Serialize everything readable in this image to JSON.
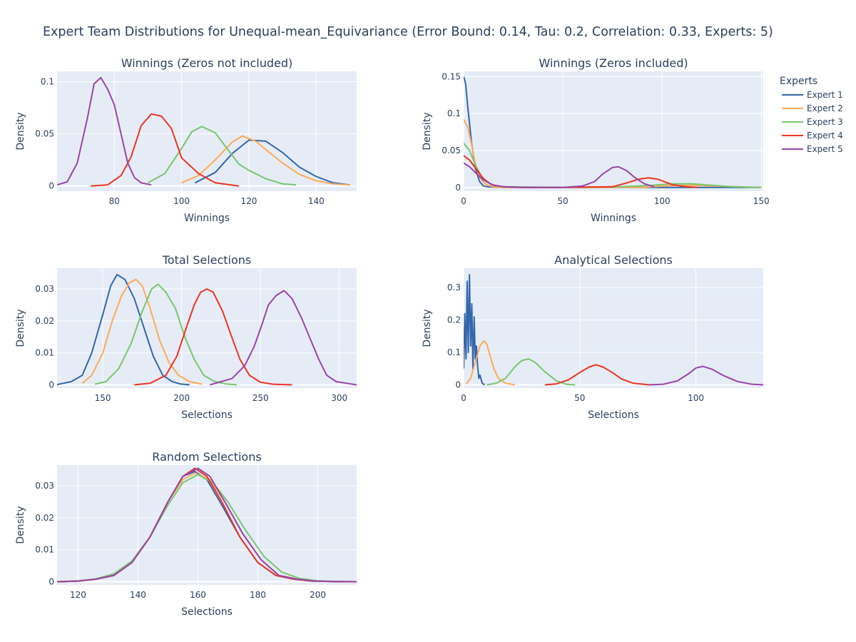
{
  "title": "Expert Team Distributions for Unequal-mean_Equivariance (Error Bound: 0.14, Tau: 0.2, Correlation: 0.33, Experts: 5)",
  "legend": {
    "title": "Experts",
    "placement": "top-right",
    "entries": [
      {
        "name": "Expert 1",
        "color": "#3366aa"
      },
      {
        "name": "Expert 2",
        "color": "#ffaa55"
      },
      {
        "name": "Expert 3",
        "color": "#77c66e"
      },
      {
        "name": "Expert 4",
        "color": "#ee3322"
      },
      {
        "name": "Expert 5",
        "color": "#9944aa"
      }
    ]
  },
  "colors": {
    "plot_bg": "#e5ecf6",
    "grid": "#ffffff",
    "text": "#2a3f5f"
  },
  "chart_data": [
    {
      "type": "line",
      "title": "Winnings (Zeros not included)",
      "xlabel": "Winnings",
      "ylabel": "Density",
      "xlim": [
        63,
        152
      ],
      "ylim": [
        -0.005,
        0.11
      ],
      "xticks": [
        80,
        100,
        120,
        140
      ],
      "yticks": [
        0,
        0.05,
        0.1
      ],
      "ytick_labels": [
        "0",
        "0.05",
        "0.1"
      ],
      "grid": true,
      "series": [
        {
          "name": "Expert 1",
          "x": [
            104,
            110,
            115,
            120,
            125,
            130,
            135,
            140,
            145,
            150
          ],
          "y": [
            0.003,
            0.013,
            0.031,
            0.044,
            0.043,
            0.032,
            0.018,
            0.009,
            0.003,
            0.001
          ]
        },
        {
          "name": "Expert 2",
          "x": [
            100,
            105,
            110,
            115,
            118,
            122,
            125,
            130,
            135,
            140,
            145,
            150
          ],
          "y": [
            0.003,
            0.01,
            0.025,
            0.042,
            0.048,
            0.043,
            0.035,
            0.022,
            0.011,
            0.005,
            0.002,
            0.001
          ]
        },
        {
          "name": "Expert 3",
          "x": [
            90,
            95,
            100,
            103,
            106,
            110,
            113,
            117,
            120,
            125,
            130,
            134
          ],
          "y": [
            0.003,
            0.012,
            0.036,
            0.052,
            0.057,
            0.051,
            0.038,
            0.021,
            0.015,
            0.007,
            0.002,
            0.001
          ]
        },
        {
          "name": "Expert 4",
          "x": [
            73,
            78,
            82,
            85,
            88,
            91,
            94,
            97,
            100,
            105,
            110,
            117
          ],
          "y": [
            0.0,
            0.001,
            0.01,
            0.028,
            0.058,
            0.069,
            0.067,
            0.055,
            0.027,
            0.012,
            0.003,
            0.0
          ]
        },
        {
          "name": "Expert 5",
          "x": [
            63,
            66,
            69,
            72,
            74,
            76,
            78,
            80,
            82,
            84,
            86,
            88,
            91
          ],
          "y": [
            0.001,
            0.004,
            0.022,
            0.065,
            0.098,
            0.104,
            0.093,
            0.078,
            0.05,
            0.022,
            0.008,
            0.003,
            0.001
          ]
        }
      ]
    },
    {
      "type": "line",
      "title": "Winnings (Zeros included)",
      "xlabel": "Winnings",
      "ylabel": "Density",
      "xlim": [
        0,
        151
      ],
      "ylim": [
        -0.005,
        0.157
      ],
      "xticks": [
        0,
        50,
        100,
        150
      ],
      "yticks": [
        0,
        0.05,
        0.1,
        0.15
      ],
      "ytick_labels": [
        "0",
        "0.05",
        "0.1",
        "0.15"
      ],
      "grid": true,
      "series": [
        {
          "name": "Expert 1",
          "x": [
            0,
            1,
            2,
            4,
            6,
            8,
            10,
            12,
            15,
            20,
            50,
            100,
            150
          ],
          "y": [
            0.15,
            0.14,
            0.11,
            0.06,
            0.025,
            0.008,
            0.002,
            0.001,
            0.0005,
            0,
            0,
            0,
            0
          ]
        },
        {
          "name": "Expert 2",
          "x": [
            0,
            2,
            4,
            6,
            8,
            10,
            12,
            15,
            20,
            50,
            90,
            100,
            110,
            117,
            125,
            150
          ],
          "y": [
            0.092,
            0.082,
            0.058,
            0.03,
            0.014,
            0.007,
            0.003,
            0.001,
            0,
            0,
            0,
            0.002,
            0.003,
            0.003,
            0.002,
            0
          ]
        },
        {
          "name": "Expert 3",
          "x": [
            0,
            3,
            6,
            9,
            12,
            15,
            20,
            50,
            80,
            95,
            105,
            115,
            125,
            135,
            150
          ],
          "y": [
            0.06,
            0.05,
            0.03,
            0.015,
            0.007,
            0.003,
            0.001,
            0,
            0.001,
            0.003,
            0.005,
            0.005,
            0.003,
            0.001,
            0
          ]
        },
        {
          "name": "Expert 4",
          "x": [
            0,
            3,
            6,
            10,
            14,
            20,
            30,
            50,
            75,
            82,
            88,
            93,
            98,
            105,
            112,
            118
          ],
          "y": [
            0.043,
            0.037,
            0.026,
            0.012,
            0.004,
            0.001,
            0,
            0,
            0.001,
            0.006,
            0.011,
            0.013,
            0.011,
            0.004,
            0.001,
            0
          ]
        },
        {
          "name": "Expert 5",
          "x": [
            0,
            3,
            6,
            10,
            15,
            20,
            30,
            50,
            60,
            66,
            70,
            75,
            78,
            82,
            86,
            91,
            96
          ],
          "y": [
            0.033,
            0.028,
            0.02,
            0.01,
            0.003,
            0.001,
            0,
            0,
            0.002,
            0.008,
            0.018,
            0.027,
            0.028,
            0.023,
            0.014,
            0.005,
            0.001
          ]
        }
      ]
    },
    {
      "type": "line",
      "title": "Total Selections",
      "xlabel": "Selections",
      "ylabel": "Density",
      "xlim": [
        121,
        311
      ],
      "ylim": [
        -0.001,
        0.0365
      ],
      "xticks": [
        150,
        200,
        250,
        300
      ],
      "yticks": [
        0,
        0.01,
        0.02,
        0.03
      ],
      "ytick_labels": [
        "0",
        "0.01",
        "0.02",
        "0.03"
      ],
      "grid": true,
      "series": [
        {
          "name": "Expert 1",
          "x": [
            121,
            130,
            137,
            143,
            150,
            155,
            159,
            164,
            170,
            176,
            182,
            188,
            194,
            199,
            205
          ],
          "y": [
            0.0001,
            0.001,
            0.003,
            0.01,
            0.022,
            0.031,
            0.0345,
            0.033,
            0.027,
            0.018,
            0.009,
            0.003,
            0.001,
            0.0003,
            0
          ]
        },
        {
          "name": "Expert 2",
          "x": [
            137,
            143,
            150,
            156,
            162,
            167,
            171,
            175,
            180,
            186,
            192,
            198,
            205,
            213
          ],
          "y": [
            0.0005,
            0.003,
            0.01,
            0.02,
            0.028,
            0.032,
            0.033,
            0.031,
            0.024,
            0.014,
            0.007,
            0.003,
            0.001,
            0.0002
          ]
        },
        {
          "name": "Expert 3",
          "x": [
            145,
            152,
            160,
            168,
            175,
            181,
            185,
            190,
            196,
            202,
            208,
            214,
            221,
            228,
            235
          ],
          "y": [
            0.0002,
            0.001,
            0.005,
            0.013,
            0.023,
            0.03,
            0.0315,
            0.029,
            0.024,
            0.015,
            0.008,
            0.003,
            0.001,
            0.0003,
            0
          ]
        },
        {
          "name": "Expert 4",
          "x": [
            170,
            180,
            190,
            197,
            203,
            208,
            212,
            216,
            220,
            226,
            231,
            237,
            243,
            250,
            258,
            270
          ],
          "y": [
            0,
            0.0005,
            0.003,
            0.009,
            0.018,
            0.025,
            0.029,
            0.03,
            0.029,
            0.023,
            0.016,
            0.008,
            0.003,
            0.0008,
            0.0002,
            0
          ]
        },
        {
          "name": "Expert 5",
          "x": [
            218,
            225,
            232,
            240,
            246,
            251,
            255,
            260,
            265,
            270,
            276,
            281,
            287,
            292,
            298,
            311
          ],
          "y": [
            0,
            0.001,
            0.002,
            0.006,
            0.012,
            0.019,
            0.025,
            0.028,
            0.0295,
            0.027,
            0.021,
            0.015,
            0.008,
            0.003,
            0.001,
            0
          ]
        }
      ]
    },
    {
      "type": "line",
      "title": "Analytical Selections",
      "xlabel": "Selections",
      "ylabel": "Density",
      "xlim": [
        0,
        129
      ],
      "ylim": [
        -0.01,
        0.36
      ],
      "xticks": [
        0,
        50,
        100
      ],
      "yticks": [
        0,
        0.1,
        0.2,
        0.3
      ],
      "ytick_labels": [
        "0",
        "0.1",
        "0.2",
        "0.3"
      ],
      "grid": true,
      "series": [
        {
          "name": "Expert 1",
          "x": [
            0,
            0.5,
            1,
            1.5,
            2,
            2.5,
            3,
            3.5,
            4,
            4.5,
            5,
            5.5,
            6,
            6.5,
            7,
            8,
            9
          ],
          "y": [
            0.05,
            0.22,
            0.08,
            0.32,
            0.1,
            0.34,
            0.12,
            0.25,
            0.05,
            0.21,
            0.08,
            0.12,
            0.06,
            0.02,
            0.03,
            0.005,
            0
          ]
        },
        {
          "name": "Expert 2",
          "x": [
            1,
            3,
            5,
            7,
            8,
            9,
            10,
            11,
            13,
            15,
            18,
            22
          ],
          "y": [
            0.002,
            0.02,
            0.07,
            0.12,
            0.13,
            0.135,
            0.125,
            0.1,
            0.05,
            0.02,
            0.005,
            0
          ]
        },
        {
          "name": "Expert 3",
          "x": [
            10,
            14,
            18,
            22,
            25,
            28,
            31,
            35,
            40,
            44,
            48
          ],
          "y": [
            0,
            0.005,
            0.02,
            0.055,
            0.075,
            0.08,
            0.068,
            0.04,
            0.012,
            0.002,
            0
          ]
        },
        {
          "name": "Expert 4",
          "x": [
            35,
            40,
            45,
            50,
            54,
            57,
            60,
            64,
            68,
            73,
            80
          ],
          "y": [
            0,
            0.003,
            0.015,
            0.038,
            0.055,
            0.062,
            0.055,
            0.038,
            0.018,
            0.005,
            0
          ]
        },
        {
          "name": "Expert 5",
          "x": [
            80,
            86,
            92,
            97,
            100,
            103,
            107,
            112,
            118,
            124,
            129
          ],
          "y": [
            0,
            0.002,
            0.012,
            0.035,
            0.052,
            0.057,
            0.048,
            0.028,
            0.01,
            0.002,
            0
          ]
        }
      ]
    },
    {
      "type": "line",
      "title": "Random Selections",
      "xlabel": "Selections",
      "ylabel": "Density",
      "xlim": [
        113,
        213
      ],
      "ylim": [
        -0.001,
        0.0365
      ],
      "xticks": [
        120,
        140,
        160,
        180,
        200
      ],
      "yticks": [
        0,
        0.01,
        0.02,
        0.03
      ],
      "ytick_labels": [
        "0",
        "0.01",
        "0.02",
        "0.03"
      ],
      "grid": true,
      "series": [
        {
          "name": "Expert 1",
          "x": [
            113,
            120,
            126,
            132,
            138,
            144,
            150,
            155,
            159,
            163,
            168,
            174,
            180,
            186,
            192,
            198,
            205,
            213
          ],
          "y": [
            0,
            0.0002,
            0.0008,
            0.002,
            0.006,
            0.014,
            0.025,
            0.033,
            0.0345,
            0.032,
            0.024,
            0.014,
            0.006,
            0.002,
            0.0008,
            0.0002,
            5e-05,
            0
          ]
        },
        {
          "name": "Expert 2",
          "x": [
            113,
            120,
            126,
            132,
            138,
            144,
            150,
            155,
            159,
            164,
            169,
            175,
            181,
            187,
            193,
            199,
            206,
            213
          ],
          "y": [
            0,
            0.0002,
            0.0008,
            0.002,
            0.006,
            0.014,
            0.025,
            0.032,
            0.034,
            0.032,
            0.025,
            0.015,
            0.007,
            0.002,
            0.0008,
            0.0002,
            5e-05,
            0
          ]
        },
        {
          "name": "Expert 3",
          "x": [
            113,
            120,
            126,
            132,
            138,
            144,
            150,
            155,
            160,
            165,
            170,
            176,
            182,
            188,
            194,
            200,
            207,
            213
          ],
          "y": [
            0,
            0.0003,
            0.0009,
            0.0025,
            0.0065,
            0.014,
            0.024,
            0.031,
            0.0335,
            0.031,
            0.025,
            0.016,
            0.008,
            0.003,
            0.001,
            0.0003,
            5e-05,
            0
          ]
        },
        {
          "name": "Expert 4",
          "x": [
            113,
            120,
            126,
            132,
            138,
            144,
            150,
            155,
            159,
            163,
            168,
            174,
            180,
            186,
            192,
            198,
            205,
            213
          ],
          "y": [
            0,
            0.0002,
            0.0008,
            0.002,
            0.006,
            0.014,
            0.025,
            0.033,
            0.0355,
            0.033,
            0.025,
            0.014,
            0.006,
            0.002,
            0.0008,
            0.0002,
            5e-05,
            0
          ]
        },
        {
          "name": "Expert 5",
          "x": [
            113,
            120,
            126,
            132,
            138,
            144,
            150,
            155,
            160,
            164,
            169,
            175,
            181,
            187,
            193,
            199,
            206,
            213
          ],
          "y": [
            0,
            0.0002,
            0.0008,
            0.002,
            0.006,
            0.014,
            0.025,
            0.033,
            0.0355,
            0.033,
            0.025,
            0.015,
            0.007,
            0.002,
            0.0008,
            0.0002,
            5e-05,
            0
          ]
        }
      ]
    }
  ]
}
